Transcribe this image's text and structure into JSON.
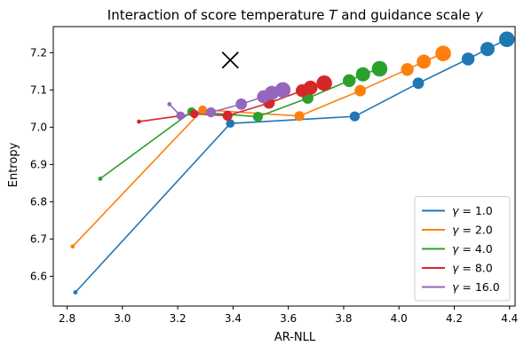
{
  "chart_data": {
    "type": "line",
    "title_prefix": "Interaction of score temperature ",
    "title_var1": "T",
    "title_mid": " and guidance scale ",
    "title_var2": "γ",
    "xlabel": "AR-NLL",
    "ylabel": "Entropy",
    "xlim": [
      2.75,
      4.42
    ],
    "ylim": [
      6.52,
      7.27
    ],
    "xticks": [
      "2.8",
      "3.0",
      "3.2",
      "3.4",
      "3.6",
      "3.8",
      "4.0",
      "4.2",
      "4.4"
    ],
    "yticks": [
      "6.6",
      "6.7",
      "6.8",
      "6.9",
      "7.0",
      "7.1",
      "7.2"
    ],
    "grid": false,
    "legend_position": "lower-right",
    "marker_size_encodes": "score temperature T (increasing)",
    "reference_point": {
      "x": 3.39,
      "y": 7.18,
      "marker": "x"
    },
    "series": [
      {
        "name": "γ = 1.0",
        "legend_var": "γ",
        "legend_value": " = 1.0",
        "color": "#1f77b4",
        "points": [
          {
            "x": 2.83,
            "y": 6.557,
            "rank": 0
          },
          {
            "x": 3.39,
            "y": 7.01,
            "rank": 1
          },
          {
            "x": 3.84,
            "y": 7.029,
            "rank": 2
          },
          {
            "x": 4.07,
            "y": 7.118,
            "rank": 3
          },
          {
            "x": 4.25,
            "y": 7.183,
            "rank": 4
          },
          {
            "x": 4.32,
            "y": 7.21,
            "rank": 5
          },
          {
            "x": 4.39,
            "y": 7.236,
            "rank": 6
          }
        ]
      },
      {
        "name": "γ = 2.0",
        "legend_var": "γ",
        "legend_value": " = 2.0",
        "color": "#ff7f0e",
        "points": [
          {
            "x": 2.82,
            "y": 6.68,
            "rank": 0
          },
          {
            "x": 3.29,
            "y": 7.047,
            "rank": 1
          },
          {
            "x": 3.64,
            "y": 7.03,
            "rank": 2
          },
          {
            "x": 3.86,
            "y": 7.098,
            "rank": 3
          },
          {
            "x": 4.03,
            "y": 7.155,
            "rank": 4
          },
          {
            "x": 4.09,
            "y": 7.176,
            "rank": 5
          },
          {
            "x": 4.16,
            "y": 7.198,
            "rank": 6
          }
        ]
      },
      {
        "name": "γ = 4.0",
        "legend_var": "γ",
        "legend_value": " = 4.0",
        "color": "#2ca02c",
        "points": [
          {
            "x": 2.92,
            "y": 6.862,
            "rank": 0
          },
          {
            "x": 3.25,
            "y": 7.042,
            "rank": 1
          },
          {
            "x": 3.49,
            "y": 7.028,
            "rank": 2
          },
          {
            "x": 3.67,
            "y": 7.078,
            "rank": 3
          },
          {
            "x": 3.82,
            "y": 7.125,
            "rank": 4
          },
          {
            "x": 3.87,
            "y": 7.142,
            "rank": 5
          },
          {
            "x": 3.93,
            "y": 7.157,
            "rank": 6
          }
        ]
      },
      {
        "name": "γ = 8.0",
        "legend_var": "γ",
        "legend_value": " = 8.0",
        "color": "#d62728",
        "points": [
          {
            "x": 3.06,
            "y": 7.015,
            "rank": 0
          },
          {
            "x": 3.26,
            "y": 7.036,
            "rank": 1
          },
          {
            "x": 3.38,
            "y": 7.031,
            "rank": 2
          },
          {
            "x": 3.53,
            "y": 7.065,
            "rank": 3
          },
          {
            "x": 3.65,
            "y": 7.098,
            "rank": 4
          },
          {
            "x": 3.68,
            "y": 7.106,
            "rank": 5
          },
          {
            "x": 3.73,
            "y": 7.118,
            "rank": 6
          }
        ]
      },
      {
        "name": "γ = 16.0",
        "legend_var": "γ",
        "legend_value": " = 16.0",
        "color": "#9467bd",
        "points": [
          {
            "x": 3.17,
            "y": 7.062,
            "rank": 0
          },
          {
            "x": 3.21,
            "y": 7.031,
            "rank": 1
          },
          {
            "x": 3.32,
            "y": 7.04,
            "rank": 2
          },
          {
            "x": 3.43,
            "y": 7.062,
            "rank": 3
          },
          {
            "x": 3.51,
            "y": 7.082,
            "rank": 4
          },
          {
            "x": 3.54,
            "y": 7.092,
            "rank": 5
          },
          {
            "x": 3.58,
            "y": 7.1,
            "rank": 6
          }
        ]
      }
    ]
  }
}
